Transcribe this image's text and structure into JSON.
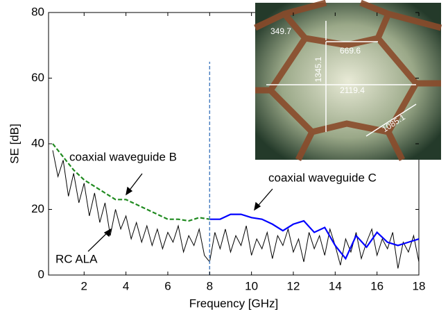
{
  "chart_data": {
    "type": "line",
    "xlabel": "Frequency [GHz]",
    "ylabel": "SE [dB]",
    "xlim": [
      0.3,
      18
    ],
    "xticks": [
      2,
      4,
      6,
      8,
      10,
      12,
      14,
      16,
      18
    ],
    "ylim": [
      0,
      80
    ],
    "yticks": [
      0,
      20,
      40,
      60,
      80
    ],
    "vline": {
      "x": 8,
      "y": [
        0,
        65
      ],
      "color": "#4a7fc1"
    },
    "annotations": [
      "coaxial waveguide B",
      "coaxial waveguide C",
      "RC ALA"
    ],
    "inset_labels": [
      "349.7",
      "669.6",
      "1345.1",
      "2119.4",
      "1085.1"
    ],
    "series": [
      {
        "name": "coaxial waveguide B",
        "color": "#1f8a1f",
        "dashed": true,
        "x": [
          0.5,
          1,
          1.5,
          2,
          2.5,
          3,
          3.5,
          4,
          4.5,
          5,
          5.5,
          6,
          6.5,
          7,
          7.5,
          8
        ],
        "values": [
          40,
          36,
          32,
          29,
          27,
          25,
          23,
          23,
          21.5,
          20,
          18.5,
          17,
          17,
          16.5,
          17.5,
          17
        ]
      },
      {
        "name": "coaxial waveguide C",
        "color": "#0000ff",
        "dashed": false,
        "x": [
          8,
          8.5,
          9,
          9.5,
          10,
          10.5,
          11,
          11.5,
          12,
          12.5,
          13,
          13.5,
          14,
          14.5,
          15,
          15.5,
          16,
          16.5,
          17,
          17.5,
          18
        ],
        "values": [
          17,
          17,
          18.5,
          18.5,
          17.5,
          17,
          15.5,
          13.5,
          15.5,
          16.5,
          13,
          14.5,
          9,
          5,
          12,
          8.5,
          13,
          10,
          9,
          10,
          11
        ]
      },
      {
        "name": "RC ALA",
        "color": "#000000",
        "dashed": false,
        "x": [
          0.5,
          0.75,
          1,
          1.25,
          1.5,
          1.75,
          2,
          2.25,
          2.5,
          2.75,
          3,
          3.25,
          3.5,
          3.75,
          4,
          4.25,
          4.5,
          4.75,
          5,
          5.25,
          5.5,
          5.75,
          6,
          6.25,
          6.5,
          6.75,
          7,
          7.25,
          7.5,
          7.75,
          8,
          8.25,
          8.5,
          8.75,
          9,
          9.25,
          9.5,
          9.75,
          10,
          10.25,
          10.5,
          10.75,
          11,
          11.25,
          11.5,
          11.75,
          12,
          12.25,
          12.5,
          12.75,
          13,
          13.25,
          13.5,
          13.75,
          14,
          14.25,
          14.5,
          14.75,
          15,
          15.25,
          15.5,
          15.75,
          16,
          16.25,
          16.5,
          16.75,
          17,
          17.25,
          17.5,
          17.75,
          18
        ],
        "values": [
          38,
          30,
          35,
          24,
          31,
          22,
          28,
          18,
          25,
          16,
          22,
          12,
          20,
          14,
          18,
          11,
          16,
          10,
          15,
          9,
          14,
          8,
          13,
          10,
          15,
          7,
          12,
          9,
          14,
          6,
          4,
          13,
          8,
          14,
          7,
          12,
          9,
          15,
          6,
          11,
          8,
          13,
          5,
          12,
          9,
          14,
          7,
          11,
          4,
          13,
          8,
          12,
          6,
          14,
          9,
          3,
          11,
          7,
          13,
          5,
          10,
          14,
          6,
          11,
          8,
          13,
          2,
          10,
          7,
          12,
          4
        ]
      }
    ]
  }
}
